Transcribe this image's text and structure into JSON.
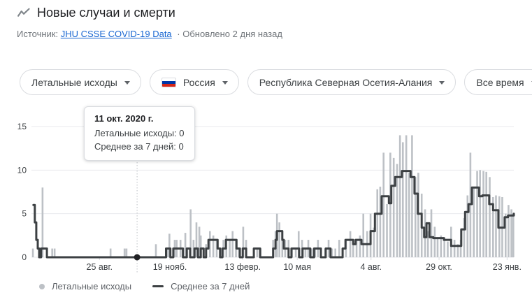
{
  "header": {
    "title": "Новые случаи и смерти",
    "icon": "trend-line-icon"
  },
  "source": {
    "prefix": "Источник:",
    "link_label": "JHU CSSE COVID-19 Data",
    "suffix": "· Обновлено 2 дня назад"
  },
  "filters": [
    {
      "label": "Летальные исходы"
    },
    {
      "label": "Россия",
      "flag": "russia-flag"
    },
    {
      "label": "Республика Северная Осетия-Алания"
    },
    {
      "label": "Все время"
    }
  ],
  "tooltip": {
    "date": "11 окт. 2020 г.",
    "rows": [
      "Летальные исходы: 0",
      "Среднее за 7 дней: 0"
    ]
  },
  "legend": [
    {
      "marker": "dot",
      "label": "Летальные исходы"
    },
    {
      "marker": "line",
      "label": "Среднее за 7 дней"
    }
  ],
  "colors": {
    "bar": "#bdc1c6",
    "line": "#3c4043",
    "grid": "#e8eaed",
    "tick": "#dadce0",
    "axis_text": "#3c4043",
    "dot": "#202124",
    "selection_line": "#bdc1c6",
    "link": "#1967d2",
    "muted_text": "#70757a"
  },
  "chart_data": {
    "type": "bar",
    "title": "Новые случаи и смерти — Летальные исходы, Республика Северная Осетия-Алания",
    "ylabel": "",
    "xlabel": "",
    "ylim": [
      0,
      15
    ],
    "y_ticks": [
      0,
      5,
      10,
      15
    ],
    "x_ticks": [
      {
        "pct": 14.1,
        "label": "25 авг."
      },
      {
        "pct": 28.7,
        "label": "19 нояб."
      },
      {
        "pct": 43.8,
        "label": "13 февр."
      },
      {
        "pct": 55.1,
        "label": "10 мая"
      },
      {
        "pct": 70.4,
        "label": "4 авг."
      },
      {
        "pct": 84.5,
        "label": "29 окт."
      },
      {
        "pct": 98.6,
        "label": "23 янв."
      }
    ],
    "selected_point": {
      "pct": 21.9,
      "value": 0,
      "date": "11 окт. 2020 г."
    },
    "series": [
      {
        "name": "Летальные исходы",
        "kind": "bar",
        "points": [
          [
            0.3,
            1
          ],
          [
            2.3,
            8
          ],
          [
            4.3,
            1
          ],
          [
            4.8,
            1
          ],
          [
            16.4,
            1
          ],
          [
            19.3,
            1
          ],
          [
            19.7,
            1
          ],
          [
            25.8,
            1.5
          ],
          [
            28.3,
            1
          ],
          [
            28.6,
            2.7
          ],
          [
            29.7,
            2
          ],
          [
            30.1,
            2
          ],
          [
            30.9,
            2
          ],
          [
            31.4,
            1
          ],
          [
            31.9,
            2.8
          ],
          [
            33.0,
            5.5
          ],
          [
            33.6,
            2
          ],
          [
            34.2,
            4
          ],
          [
            34.8,
            3.5
          ],
          [
            35.1,
            2.5
          ],
          [
            36.2,
            1.5
          ],
          [
            37.0,
            3
          ],
          [
            37.7,
            2.5
          ],
          [
            38.4,
            2
          ],
          [
            39.1,
            1
          ],
          [
            39.8,
            2
          ],
          [
            40.4,
            2.5
          ],
          [
            41.1,
            2
          ],
          [
            41.7,
            3
          ],
          [
            42.4,
            2
          ],
          [
            43.0,
            1
          ],
          [
            43.9,
            3.5
          ],
          [
            44.5,
            2
          ],
          [
            46.1,
            1
          ],
          [
            46.8,
            1
          ],
          [
            47.5,
            1
          ],
          [
            50.1,
            2
          ],
          [
            50.6,
            3
          ],
          [
            50.9,
            5
          ],
          [
            51.4,
            4
          ],
          [
            52.0,
            3
          ],
          [
            52.6,
            2
          ],
          [
            53.3,
            2
          ],
          [
            54.0,
            1
          ],
          [
            54.8,
            1
          ],
          [
            55.4,
            3
          ],
          [
            56.1,
            2
          ],
          [
            56.8,
            1
          ],
          [
            57.4,
            2
          ],
          [
            58.1,
            1
          ],
          [
            58.8,
            1
          ],
          [
            59.4,
            2
          ],
          [
            60.0,
            1
          ],
          [
            60.9,
            1
          ],
          [
            61.6,
            2
          ],
          [
            62.3,
            1
          ],
          [
            63.0,
            1
          ],
          [
            63.8,
            2
          ],
          [
            64.5,
            1
          ],
          [
            65.2,
            2
          ],
          [
            66.1,
            3
          ],
          [
            66.7,
            2
          ],
          [
            67.4,
            2
          ],
          [
            68.1,
            2.5
          ],
          [
            68.8,
            5
          ],
          [
            69.6,
            3
          ],
          [
            70.3,
            5
          ],
          [
            71.0,
            3.4
          ],
          [
            71.7,
            7.8
          ],
          [
            72.3,
            8.1
          ],
          [
            73.0,
            12
          ],
          [
            73.7,
            6.1
          ],
          [
            74.4,
            12
          ],
          [
            75.1,
            11.4
          ],
          [
            75.8,
            10.7
          ],
          [
            76.4,
            14
          ],
          [
            77.0,
            13.2
          ],
          [
            77.7,
            14
          ],
          [
            78.3,
            9.7
          ],
          [
            78.9,
            14
          ],
          [
            79.6,
            9.2
          ],
          [
            80.2,
            9.7
          ],
          [
            80.9,
            7.3
          ],
          [
            81.6,
            5.5
          ],
          [
            82.2,
            3
          ],
          [
            82.9,
            5.5
          ],
          [
            83.6,
            3.5
          ],
          [
            84.2,
            2.3
          ],
          [
            84.9,
            2.5
          ],
          [
            85.6,
            2.3
          ],
          [
            86.3,
            1.8
          ],
          [
            87.0,
            3.5
          ],
          [
            87.7,
            2
          ],
          [
            88.4,
            1.5
          ],
          [
            89.0,
            2
          ],
          [
            89.7,
            4.5
          ],
          [
            90.4,
            7.1
          ],
          [
            91.0,
            12
          ],
          [
            91.7,
            8
          ],
          [
            92.4,
            9.9
          ],
          [
            93.0,
            10
          ],
          [
            93.7,
            9.9
          ],
          [
            94.3,
            9.8
          ],
          [
            95.0,
            9.2
          ],
          [
            95.7,
            6.9
          ],
          [
            96.3,
            7.1
          ],
          [
            97.0,
            7
          ],
          [
            97.6,
            6.9
          ],
          [
            98.3,
            5
          ],
          [
            98.9,
            6
          ],
          [
            99.5,
            5.5
          ],
          [
            99.9,
            5
          ]
        ]
      },
      {
        "name": "Среднее за 7 дней",
        "kind": "step-line",
        "points": [
          [
            0.4,
            6
          ],
          [
            0.7,
            4
          ],
          [
            1.0,
            2
          ],
          [
            1.3,
            1
          ],
          [
            1.6,
            0
          ],
          [
            2.0,
            1
          ],
          [
            3.2,
            0
          ],
          [
            27.9,
            1
          ],
          [
            28.8,
            0
          ],
          [
            29.4,
            1
          ],
          [
            31.4,
            0
          ],
          [
            32.2,
            1
          ],
          [
            32.9,
            0
          ],
          [
            33.8,
            1
          ],
          [
            34.5,
            0
          ],
          [
            35.1,
            1
          ],
          [
            35.7,
            0
          ],
          [
            36.2,
            1
          ],
          [
            36.7,
            2
          ],
          [
            38.6,
            1
          ],
          [
            39.1,
            0
          ],
          [
            39.6,
            1
          ],
          [
            40.3,
            2
          ],
          [
            42.5,
            1
          ],
          [
            43.2,
            0
          ],
          [
            43.8,
            1
          ],
          [
            44.5,
            0
          ],
          [
            46.1,
            1
          ],
          [
            47.4,
            0
          ],
          [
            50.1,
            1
          ],
          [
            50.6,
            2
          ],
          [
            50.9,
            3
          ],
          [
            52.0,
            2
          ],
          [
            52.3,
            1
          ],
          [
            53.3,
            0
          ],
          [
            53.9,
            1
          ],
          [
            55.5,
            0
          ],
          [
            56.2,
            1
          ],
          [
            57.8,
            0
          ],
          [
            58.6,
            1
          ],
          [
            60.0,
            0
          ],
          [
            61.0,
            1
          ],
          [
            62.0,
            0
          ],
          [
            64.5,
            1
          ],
          [
            65.1,
            2
          ],
          [
            66.7,
            1.5
          ],
          [
            67.2,
            2
          ],
          [
            68.4,
            1.5
          ],
          [
            70.3,
            3
          ],
          [
            71.2,
            5
          ],
          [
            72.6,
            7
          ],
          [
            74.1,
            6.2
          ],
          [
            74.6,
            8.2
          ],
          [
            75.4,
            9.2
          ],
          [
            76.8,
            9.9
          ],
          [
            78.6,
            9.2
          ],
          [
            79.4,
            7.3
          ],
          [
            80.1,
            5
          ],
          [
            80.9,
            3.4
          ],
          [
            81.4,
            2.3
          ],
          [
            81.9,
            3.9
          ],
          [
            82.5,
            2.3
          ],
          [
            83.3,
            2.2
          ],
          [
            85.5,
            2
          ],
          [
            87.0,
            1.3
          ],
          [
            89.1,
            3.2
          ],
          [
            89.9,
            5.2
          ],
          [
            90.6,
            6.1
          ],
          [
            91.3,
            8
          ],
          [
            92.8,
            7
          ],
          [
            93.5,
            7.1
          ],
          [
            94.9,
            6.1
          ],
          [
            95.7,
            5.4
          ],
          [
            96.8,
            3.4
          ],
          [
            98.1,
            4.6
          ],
          [
            98.8,
            4.8
          ],
          [
            100,
            5
          ]
        ]
      }
    ]
  }
}
